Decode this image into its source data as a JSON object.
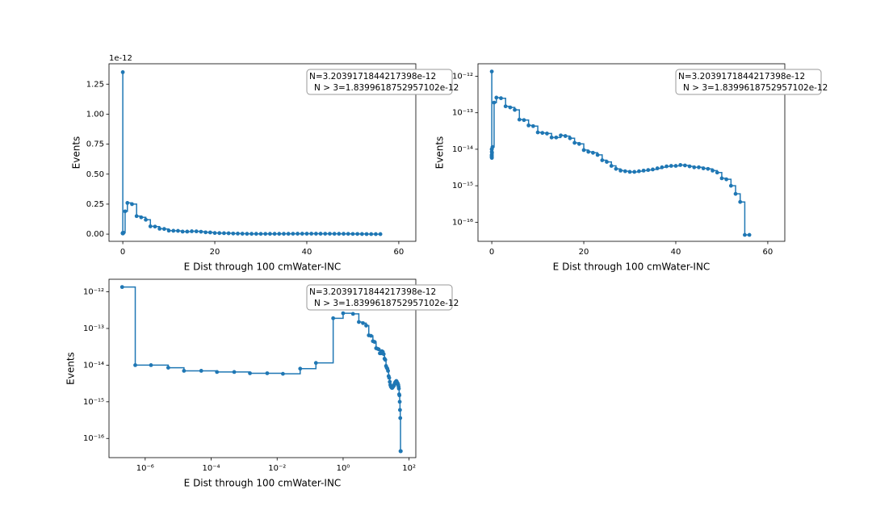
{
  "chart_data": [
    {
      "type": "line",
      "xlabel": "E Dist through 100 cmWater-INC",
      "ylabel": "Events",
      "offset_label": "1e-12",
      "xscale": "linear",
      "yscale": "linear",
      "color": "#1f77b4",
      "grid": false,
      "xlim": [
        -3,
        63.7
      ],
      "ylim": [
        -0.06,
        1.42
      ],
      "xticks": [
        0,
        20,
        40,
        60
      ],
      "yticks": [
        {
          "value": 0,
          "label": "0.00"
        },
        0.25,
        {
          "value": 0.5,
          "label": "0.50"
        },
        0.75,
        {
          "value": 1,
          "label": "1.00"
        },
        1.25
      ],
      "annotation": [
        "N=3.2039171844217398e-12",
        "N > 3=1.8399618752957102e-12"
      ],
      "x": [
        2e-07,
        5e-07,
        1.5e-06,
        5e-06,
        1.5e-05,
        5e-05,
        0.00015,
        0.0005,
        0.0015,
        0.005,
        0.015,
        0.05,
        0.15,
        0.5,
        1,
        2,
        3,
        4,
        5,
        6,
        7,
        8,
        9,
        10,
        11,
        12,
        13,
        14,
        15,
        16,
        17,
        18,
        19,
        20,
        21,
        22,
        23,
        24,
        25,
        26,
        27,
        28,
        29,
        30,
        31,
        32,
        33,
        34,
        35,
        36,
        37,
        38,
        39,
        40,
        41,
        42,
        43,
        44,
        45,
        46,
        47,
        48,
        49,
        50,
        51,
        52,
        53,
        54,
        55,
        56
      ],
      "values": [
        1.35,
        0.01,
        0.01,
        0.0085,
        0.007,
        0.007,
        0.0065,
        0.0065,
        0.006,
        0.006,
        0.0058,
        0.008,
        0.0115,
        0.19,
        0.26,
        0.25,
        0.15,
        0.14,
        0.12,
        0.065,
        0.063,
        0.045,
        0.043,
        0.029,
        0.028,
        0.027,
        0.021,
        0.021,
        0.024,
        0.023,
        0.02,
        0.015,
        0.014,
        0.0095,
        0.0085,
        0.008,
        0.007,
        0.005,
        0.0045,
        0.0035,
        0.0029,
        0.0026,
        0.0025,
        0.0024,
        0.0024,
        0.0025,
        0.0026,
        0.0027,
        0.0028,
        0.003,
        0.0032,
        0.0034,
        0.0035,
        0.0035,
        0.0037,
        0.0036,
        0.0034,
        0.0032,
        0.0032,
        0.003,
        0.0029,
        0.0026,
        0.0023,
        0.0016,
        0.0015,
        0.001,
        0.0006,
        0.00036,
        4.5e-05,
        4.5e-05
      ]
    },
    {
      "type": "line",
      "xlabel": "E Dist through 100 cmWater-INC",
      "ylabel": "Events",
      "xscale": "linear",
      "yscale": "log",
      "color": "#1f77b4",
      "grid": false,
      "xlim": [
        -3,
        63.7
      ],
      "ylim": [
        3e-17,
        2.2e-12
      ],
      "xticks": [
        0,
        20,
        40,
        60
      ],
      "yticks": [
        {
          "value": 1e-16,
          "label": "10⁻¹⁶"
        },
        {
          "value": 1e-15,
          "label": "10⁻¹⁵"
        },
        {
          "value": 1e-14,
          "label": "10⁻¹⁴"
        },
        {
          "value": 1e-13,
          "label": "10⁻¹³"
        },
        {
          "value": 1e-12,
          "label": "10⁻¹²"
        }
      ],
      "annotation": [
        "N=3.2039171844217398e-12",
        "N > 3=1.8399618752957102e-12"
      ],
      "x": [
        2e-07,
        5e-07,
        1.5e-06,
        5e-06,
        1.5e-05,
        5e-05,
        0.00015,
        0.0005,
        0.0015,
        0.005,
        0.015,
        0.05,
        0.15,
        0.5,
        1,
        2,
        3,
        4,
        5,
        6,
        7,
        8,
        9,
        10,
        11,
        12,
        13,
        14,
        15,
        16,
        17,
        18,
        19,
        20,
        21,
        22,
        23,
        24,
        25,
        26,
        27,
        28,
        29,
        30,
        31,
        32,
        33,
        34,
        35,
        36,
        37,
        38,
        39,
        40,
        41,
        42,
        43,
        44,
        45,
        46,
        47,
        48,
        49,
        50,
        51,
        52,
        53,
        54,
        55,
        56
      ],
      "values": [
        1.35e-12,
        1e-14,
        1e-14,
        8.5e-15,
        7e-15,
        7e-15,
        6.5e-15,
        6.5e-15,
        6e-15,
        6e-15,
        5.8e-15,
        8e-15,
        1.15e-14,
        1.9e-13,
        2.6e-13,
        2.5e-13,
        1.5e-13,
        1.4e-13,
        1.2e-13,
        6.5e-14,
        6.3e-14,
        4.5e-14,
        4.3e-14,
        2.9e-14,
        2.8e-14,
        2.7e-14,
        2.1e-14,
        2.1e-14,
        2.4e-14,
        2.3e-14,
        2e-14,
        1.5e-14,
        1.4e-14,
        9.5e-15,
        8.5e-15,
        8e-15,
        7e-15,
        5e-15,
        4.5e-15,
        3.5e-15,
        2.9e-15,
        2.6e-15,
        2.5e-15,
        2.4e-15,
        2.4e-15,
        2.5e-15,
        2.6e-15,
        2.7e-15,
        2.8e-15,
        3e-15,
        3.2e-15,
        3.4e-15,
        3.5e-15,
        3.5e-15,
        3.7e-15,
        3.6e-15,
        3.4e-15,
        3.2e-15,
        3.2e-15,
        3e-15,
        2.9e-15,
        2.6e-15,
        2.3e-15,
        1.6e-15,
        1.5e-15,
        1e-15,
        6e-16,
        3.6e-16,
        4.5e-17,
        4.5e-17
      ]
    },
    {
      "type": "line",
      "xlabel": "E Dist through 100 cmWater-INC",
      "ylabel": "Events",
      "xscale": "log",
      "yscale": "log",
      "color": "#1f77b4",
      "grid": false,
      "xlim": [
        8e-08,
        160
      ],
      "ylim": [
        3e-17,
        2.2e-12
      ],
      "xticks": [
        {
          "value": 1e-06,
          "label": "10⁻⁶"
        },
        {
          "value": 0.0001,
          "label": "10⁻⁴"
        },
        {
          "value": 0.01,
          "label": "10⁻²"
        },
        {
          "value": 1,
          "label": "10⁰"
        },
        {
          "value": 100,
          "label": "10²"
        }
      ],
      "yticks": [
        {
          "value": 1e-16,
          "label": "10⁻¹⁶"
        },
        {
          "value": 1e-15,
          "label": "10⁻¹⁵"
        },
        {
          "value": 1e-14,
          "label": "10⁻¹⁴"
        },
        {
          "value": 1e-13,
          "label": "10⁻¹³"
        },
        {
          "value": 1e-12,
          "label": "10⁻¹²"
        }
      ],
      "annotation": [
        "N=3.2039171844217398e-12",
        "N > 3=1.8399618752957102e-12"
      ],
      "x": [
        2e-07,
        5e-07,
        1.5e-06,
        5e-06,
        1.5e-05,
        5e-05,
        0.00015,
        0.0005,
        0.0015,
        0.005,
        0.015,
        0.05,
        0.15,
        0.5,
        1,
        2,
        3,
        4,
        5,
        6,
        7,
        8,
        9,
        10,
        11,
        12,
        13,
        14,
        15,
        16,
        17,
        18,
        19,
        20,
        21,
        22,
        23,
        24,
        25,
        26,
        27,
        28,
        29,
        30,
        31,
        32,
        33,
        34,
        35,
        36,
        37,
        38,
        39,
        40,
        41,
        42,
        43,
        44,
        45,
        46,
        47,
        48,
        49,
        50,
        51,
        52,
        53,
        54,
        55,
        56
      ],
      "values": [
        1.35e-12,
        1e-14,
        1e-14,
        8.5e-15,
        7e-15,
        7e-15,
        6.5e-15,
        6.5e-15,
        6e-15,
        6e-15,
        5.8e-15,
        8e-15,
        1.15e-14,
        1.9e-13,
        2.6e-13,
        2.5e-13,
        1.5e-13,
        1.4e-13,
        1.2e-13,
        6.5e-14,
        6.3e-14,
        4.5e-14,
        4.3e-14,
        2.9e-14,
        2.8e-14,
        2.7e-14,
        2.1e-14,
        2.1e-14,
        2.4e-14,
        2.3e-14,
        2e-14,
        1.5e-14,
        1.4e-14,
        9.5e-15,
        8.5e-15,
        8e-15,
        7e-15,
        5e-15,
        4.5e-15,
        3.5e-15,
        2.9e-15,
        2.6e-15,
        2.5e-15,
        2.4e-15,
        2.4e-15,
        2.5e-15,
        2.6e-15,
        2.7e-15,
        2.8e-15,
        3e-15,
        3.2e-15,
        3.4e-15,
        3.5e-15,
        3.5e-15,
        3.7e-15,
        3.6e-15,
        3.4e-15,
        3.2e-15,
        3.2e-15,
        3e-15,
        2.9e-15,
        2.6e-15,
        2.3e-15,
        1.6e-15,
        1.5e-15,
        1e-15,
        6e-16,
        3.6e-16,
        4.5e-17,
        4.5e-17
      ]
    }
  ]
}
